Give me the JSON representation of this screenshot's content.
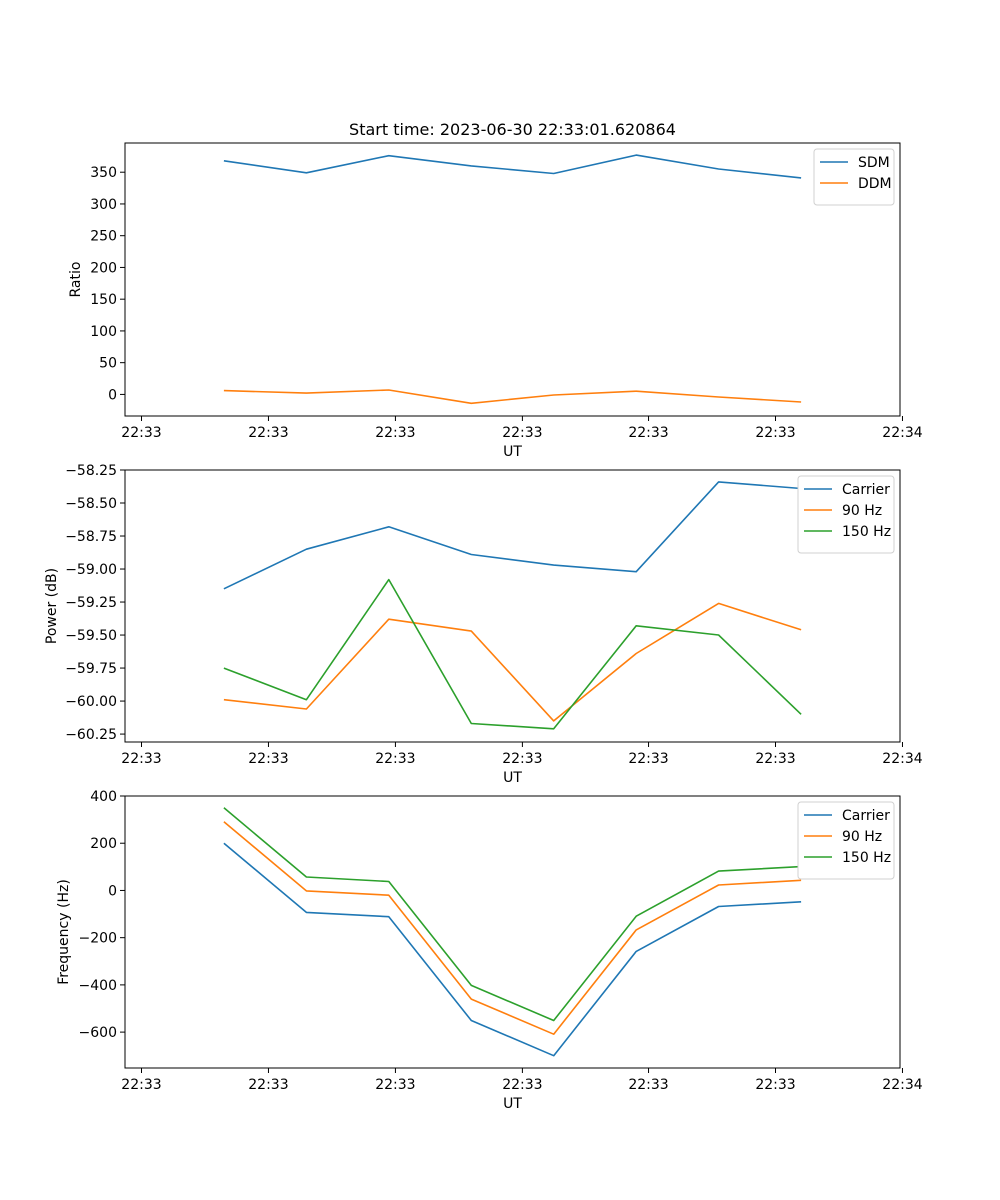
{
  "chart_data": [
    {
      "type": "line",
      "title": "Start time: 2023-06-30 22:33:01.620864",
      "xlabel": "UT",
      "ylabel": "Ratio",
      "x": [
        1,
        2,
        3,
        4,
        5,
        6,
        7,
        8
      ],
      "xlim": [
        -0.2,
        9.2
      ],
      "xticks": [
        0,
        1.54,
        3.08,
        4.62,
        6.15,
        7.69,
        9.23
      ],
      "xtick_labels": [
        "22:33",
        "22:33",
        "22:33",
        "22:33",
        "22:33",
        "22:33",
        "22:34"
      ],
      "ylim": [
        -34,
        396
      ],
      "yticks": [
        0,
        50,
        100,
        150,
        200,
        250,
        300,
        350
      ],
      "ytick_labels": [
        "0",
        "50",
        "100",
        "150",
        "200",
        "250",
        "300",
        "350"
      ],
      "grid": false,
      "legend": "top-right",
      "series": [
        {
          "name": "SDM",
          "color": "#1f77b4",
          "values": [
            368,
            349,
            376,
            360,
            348,
            377,
            355,
            341
          ]
        },
        {
          "name": "DDM",
          "color": "#ff7f0e",
          "values": [
            6,
            2,
            7,
            -14,
            -1,
            5,
            -4,
            -12
          ]
        }
      ]
    },
    {
      "type": "line",
      "title": "",
      "xlabel": "UT",
      "ylabel": "Power (dB)",
      "x": [
        1,
        2,
        3,
        4,
        5,
        6,
        7,
        8
      ],
      "xlim": [
        -0.2,
        9.2
      ],
      "xticks": [
        0,
        1.54,
        3.08,
        4.62,
        6.15,
        7.69,
        9.23
      ],
      "xtick_labels": [
        "22:33",
        "22:33",
        "22:33",
        "22:33",
        "22:33",
        "22:33",
        "22:34"
      ],
      "ylim": [
        -60.31,
        -58.25
      ],
      "yticks": [
        -60.25,
        -60.0,
        -59.75,
        -59.5,
        -59.25,
        -59.0,
        -58.75,
        -58.5,
        -58.25
      ],
      "ytick_labels": [
        "−60.25",
        "−60.00",
        "−59.75",
        "−59.50",
        "−59.25",
        "−59.00",
        "−58.75",
        "−58.50",
        "−58.25"
      ],
      "grid": false,
      "legend": "top-right",
      "series": [
        {
          "name": "Carrier",
          "color": "#1f77b4",
          "values": [
            -59.15,
            -58.85,
            -58.68,
            -58.89,
            -58.97,
            -59.02,
            -58.34,
            -58.39
          ]
        },
        {
          "name": "90 Hz",
          "color": "#ff7f0e",
          "values": [
            -59.99,
            -60.06,
            -59.38,
            -59.47,
            -60.15,
            -59.64,
            -59.26,
            -59.46
          ]
        },
        {
          "name": "150 Hz",
          "color": "#2ca02c",
          "values": [
            -59.75,
            -59.99,
            -59.08,
            -60.17,
            -60.21,
            -59.43,
            -59.5,
            -60.1
          ]
        }
      ]
    },
    {
      "type": "line",
      "title": "",
      "xlabel": "UT",
      "ylabel": "Frequency (Hz)",
      "x": [
        1,
        2,
        3,
        4,
        5,
        6,
        7,
        8
      ],
      "xlim": [
        -0.2,
        9.2
      ],
      "xticks": [
        0,
        1.54,
        3.08,
        4.62,
        6.15,
        7.69,
        9.23
      ],
      "xtick_labels": [
        "22:33",
        "22:33",
        "22:33",
        "22:33",
        "22:33",
        "22:33",
        "22:34"
      ],
      "ylim": [
        -752,
        400
      ],
      "yticks": [
        -600,
        -400,
        -200,
        0,
        200,
        400
      ],
      "ytick_labels": [
        "−600",
        "−400",
        "−200",
        "0",
        "200",
        "400"
      ],
      "grid": false,
      "legend": "top-right",
      "series": [
        {
          "name": "Carrier",
          "color": "#1f77b4",
          "values": [
            200,
            -93,
            -111,
            -551,
            -700,
            -258,
            -68,
            -48
          ]
        },
        {
          "name": "90 Hz",
          "color": "#ff7f0e",
          "values": [
            291,
            -2,
            -20,
            -460,
            -609,
            -167,
            23,
            43
          ]
        },
        {
          "name": "150 Hz",
          "color": "#2ca02c",
          "values": [
            350,
            57,
            38,
            -402,
            -551,
            -109,
            82,
            101
          ]
        }
      ]
    }
  ]
}
